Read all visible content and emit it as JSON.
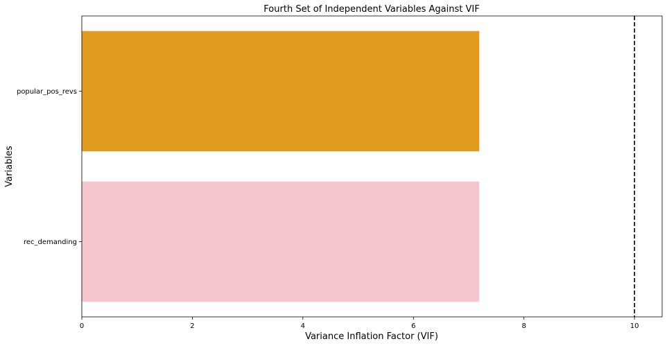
{
  "chart_data": {
    "type": "bar",
    "orientation": "horizontal",
    "title": "Fourth Set of Independent Variables Against VIF",
    "xlabel": "Variance Inflation Factor (VIF)",
    "ylabel": "Variables",
    "categories": [
      "popular_pos_revs",
      "rec_demanding"
    ],
    "values": [
      7.19,
      7.19
    ],
    "bar_colors": [
      "#e09c20",
      "#f6c6cf"
    ],
    "xlim": [
      0,
      10.5
    ],
    "xticks": [
      0,
      2,
      4,
      6,
      8,
      10
    ],
    "threshold": {
      "value": 10,
      "style": "dashed",
      "color": "#000000"
    },
    "grid": false
  }
}
